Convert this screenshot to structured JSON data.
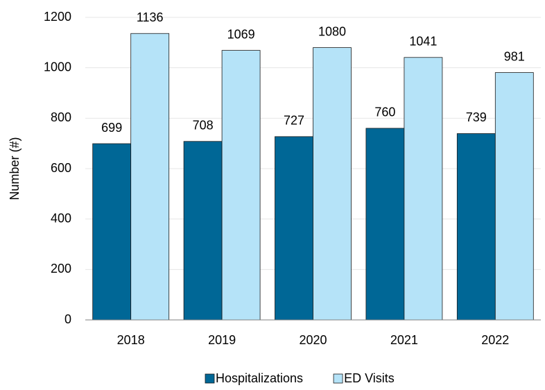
{
  "chart_data": {
    "type": "bar",
    "y_label": "Number (#)",
    "categories": [
      "2018",
      "2019",
      "2020",
      "2021",
      "2022"
    ],
    "series": [
      {
        "name": "Hospitalizations",
        "color": "#006796",
        "values": [
          699,
          708,
          727,
          760,
          739
        ]
      },
      {
        "name": "ED Visits",
        "color": "#b5e3f8",
        "values": [
          1136,
          1069,
          1080,
          1041,
          981
        ]
      }
    ],
    "ylim": [
      0,
      1200
    ],
    "yticks": [
      0,
      200,
      400,
      600,
      800,
      1000,
      1200
    ],
    "grid": true,
    "legend": "bottom"
  }
}
